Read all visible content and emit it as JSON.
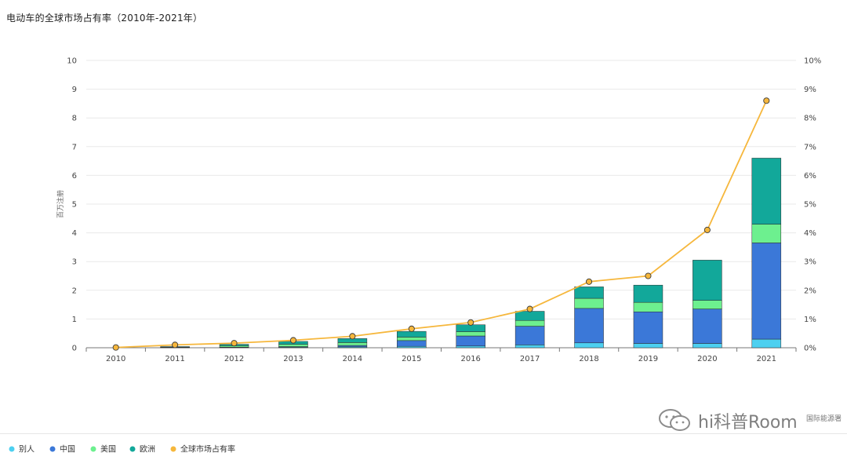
{
  "chart_data": {
    "type": "bar",
    "title": "电动车的全球市场占有率（2010年-2021年）",
    "ylabel": "百万注册",
    "ylim": [
      0,
      10
    ],
    "y2lim": [
      0,
      10
    ],
    "y2_unit": "%",
    "yticks": [
      "0",
      "1",
      "2",
      "3",
      "4",
      "5",
      "6",
      "7",
      "8",
      "9",
      "10"
    ],
    "y2ticks": [
      "0%",
      "1%",
      "2%",
      "3%",
      "4%",
      "5%",
      "6%",
      "7%",
      "8%",
      "9%",
      "10%"
    ],
    "categories": [
      "2010",
      "2011",
      "2012",
      "2013",
      "2014",
      "2015",
      "2016",
      "2017",
      "2018",
      "2019",
      "2020",
      "2021"
    ],
    "stacked": true,
    "series": [
      {
        "name": "别人",
        "color": "#4dd0f0",
        "values": [
          0.0,
          0.0,
          0.01,
          0.02,
          0.03,
          0.05,
          0.06,
          0.1,
          0.17,
          0.15,
          0.15,
          0.3
        ]
      },
      {
        "name": "中国",
        "color": "#3b78d8",
        "values": [
          0.0,
          0.01,
          0.01,
          0.02,
          0.05,
          0.2,
          0.35,
          0.65,
          1.2,
          1.1,
          1.2,
          3.35
        ]
      },
      {
        "name": "美国",
        "color": "#6df08f",
        "values": [
          0.0,
          0.01,
          0.05,
          0.08,
          0.1,
          0.12,
          0.15,
          0.2,
          0.35,
          0.33,
          0.3,
          0.65
        ]
      },
      {
        "name": "欧洲",
        "color": "#12a89a",
        "values": [
          0.0,
          0.02,
          0.05,
          0.1,
          0.14,
          0.2,
          0.24,
          0.32,
          0.4,
          0.6,
          1.4,
          2.3
        ]
      }
    ],
    "line_series": {
      "name": "全球市场占有率",
      "color": "#f6b73c",
      "axis": "right",
      "values": [
        0.01,
        0.1,
        0.16,
        0.26,
        0.4,
        0.66,
        0.88,
        1.35,
        2.3,
        2.5,
        4.1,
        8.6
      ]
    },
    "legend_position": "bottom-left",
    "grid": true,
    "source_note": "国际能源署"
  },
  "watermark": {
    "text": "hi科普Room",
    "icon": "wechat-icon"
  }
}
